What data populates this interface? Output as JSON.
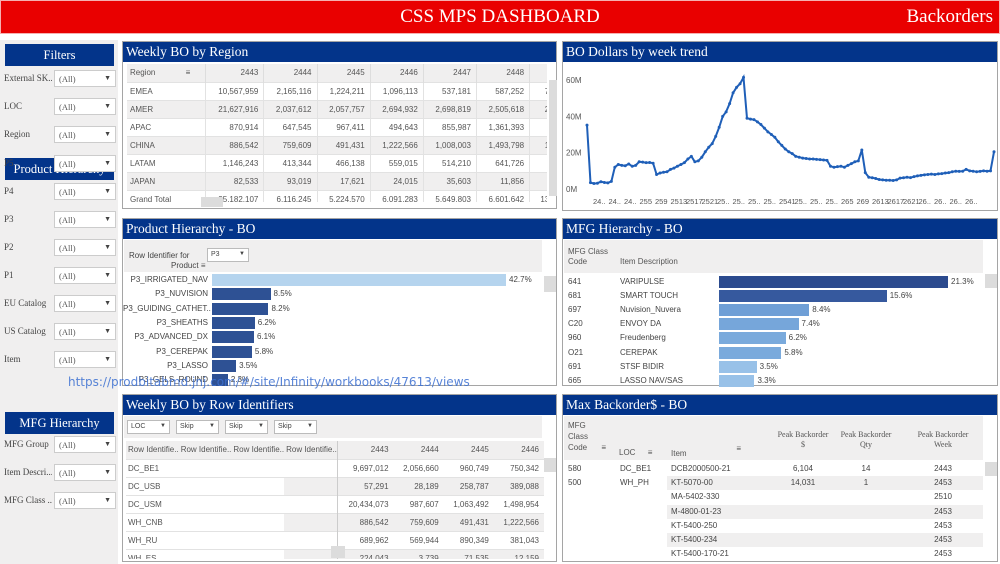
{
  "header": {
    "title": "CSS MPS DASHBOARD",
    "right_label": "Backorders"
  },
  "colors": {
    "header_red": "#e90000",
    "panel_blue": "#03348a",
    "line_blue": "#1f5fb8",
    "bar_dark": "#2e5194",
    "bar_light": "#b5d4ee"
  },
  "sidebar": {
    "sections": [
      {
        "title": "Filters",
        "filters": [
          {
            "label": "External SK...",
            "value": "(All)"
          },
          {
            "label": "LOC",
            "value": "(All)"
          },
          {
            "label": "Region",
            "value": "(All)"
          }
        ]
      },
      {
        "title": "Product Hierarchy",
        "filters": [
          {
            "label": "P5",
            "value": "(All)"
          },
          {
            "label": "P4",
            "value": "(All)"
          },
          {
            "label": "P3",
            "value": "(All)"
          },
          {
            "label": "P2",
            "value": "(All)"
          },
          {
            "label": "P1",
            "value": "(All)"
          },
          {
            "label": "EU Catalog",
            "value": "(All)"
          },
          {
            "label": "US Catalog",
            "value": "(All)"
          },
          {
            "label": "Item",
            "value": "(All)"
          }
        ]
      },
      {
        "title": "MFG Hierarchy",
        "filters": [
          {
            "label": "MFG Group",
            "value": "(All)"
          },
          {
            "label": "Item Descri...",
            "value": "(All)"
          },
          {
            "label": "MFG Class ...",
            "value": "(All)"
          }
        ]
      }
    ]
  },
  "region_table": {
    "title": "Weekly BO by Region",
    "header": [
      "Region",
      "2443",
      "2444",
      "2445",
      "2446",
      "2447",
      "2448",
      "244"
    ],
    "rows": [
      [
        "EMEA",
        "10,567,959",
        "2,165,116",
        "1,224,211",
        "1,096,113",
        "537,181",
        "587,252",
        "7,194,4"
      ],
      [
        "AMER",
        "21,627,916",
        "2,037,612",
        "2,057,757",
        "2,694,932",
        "2,698,819",
        "2,505,618",
        "2,775,8"
      ],
      [
        "APAC",
        "870,914",
        "647,545",
        "967,411",
        "494,643",
        "855,987",
        "1,361,393",
        "1,231,"
      ],
      [
        "CHINA",
        "886,542",
        "759,609",
        "491,431",
        "1,222,566",
        "1,008,003",
        "1,493,798",
        "1,466,6"
      ],
      [
        "LATAM",
        "1,146,243",
        "413,344",
        "466,138",
        "559,015",
        "514,210",
        "641,726",
        "622,7"
      ],
      [
        "JAPAN",
        "82,533",
        "93,019",
        "17,621",
        "24,015",
        "35,603",
        "11,856",
        "25,6"
      ],
      [
        "Grand Total",
        "35,182,107",
        "6,116,245",
        "5,224,570",
        "6,091,283",
        "5,649,803",
        "6,601,642",
        "13,316,6"
      ]
    ]
  },
  "chart_data": [
    {
      "type": "line",
      "title": "BO Dollars by week trend",
      "xlabel": "",
      "ylabel": "",
      "ylim": [
        0,
        65
      ],
      "y_unit": "M",
      "y_ticks": [
        "0M",
        "20M",
        "40M",
        "60M"
      ],
      "y_tick_values": [
        0,
        20,
        40,
        60
      ],
      "x_tick_labels": [
        "24..",
        "24..",
        "24..",
        "255",
        "259",
        "2513",
        "2517",
        "2521",
        "25..",
        "25..",
        "25..",
        "25..",
        "2541",
        "25..",
        "25..",
        "25..",
        "265",
        "269",
        "2613",
        "2617",
        "2621",
        "26..",
        "26..",
        "26..",
        "26.."
      ],
      "grid": false,
      "series": [
        {
          "name": "BO Dollars",
          "values": [
            35.2,
            3.5,
            3.0,
            3.2,
            4.0,
            3.6,
            3.4,
            4.2,
            12.0,
            13.5,
            13.0,
            12.8,
            13.8,
            12.5,
            13.0,
            15.0,
            14.8,
            14.5,
            14.6,
            14.2,
            8.0,
            8.8,
            9.2,
            9.5,
            10.8,
            11.5,
            12.5,
            13.5,
            14.5,
            16.5,
            18.0,
            15.0,
            15.5,
            17.5,
            20.5,
            23.0,
            25.0,
            29.0,
            34.0,
            40.0,
            42.5,
            47.0,
            53.0,
            56.0,
            58.0,
            61.5,
            39.0,
            38.5,
            38.2,
            37.0,
            35.5,
            33.5,
            31.5,
            30.0,
            28.5,
            26.0,
            24.0,
            22.0,
            20.5,
            19.5,
            18.0,
            17.5,
            17.0,
            16.8,
            16.5,
            16.5,
            16.3,
            16.2,
            16.0,
            15.8,
            12.5,
            12.0,
            12.3,
            12.5,
            12.0,
            13.0,
            14.0,
            15.0,
            15.5,
            21.5,
            9.0,
            6.5,
            6.2,
            5.8,
            5.2,
            5.0,
            4.8,
            4.8,
            4.7,
            5.0,
            6.0,
            6.2,
            6.5,
            6.3,
            6.8,
            7.2,
            7.5,
            7.8,
            8.0,
            8.2,
            8.0,
            8.3,
            8.5,
            8.8,
            9.0,
            9.5,
            9.8,
            9.7,
            9.8,
            10.8,
            10.0,
            9.8,
            9.5,
            9.7,
            10.0,
            9.8,
            10.0,
            20.5
          ]
        }
      ]
    },
    {
      "type": "bar",
      "title": "Product Hierarchy - BO",
      "orientation": "horizontal",
      "categories": [
        "P3_IRRIGATED_NAV",
        "P3_NUVISION",
        "P3_GUIDING_CATHET..",
        "P3_SHEATHS",
        "P3_ADVANCED_DX",
        "P3_CEREPAK",
        "P3_LASSO",
        "P3_GELS_ROUND"
      ],
      "values": [
        42.7,
        8.5,
        8.2,
        6.2,
        6.1,
        5.8,
        3.5,
        2.3
      ],
      "value_labels": [
        "42.7%",
        "8.5%",
        "8.2%",
        "6.2%",
        "6.1%",
        "5.8%",
        "3.5%",
        "2.3%"
      ],
      "unit": "%",
      "highlighted_index": 0
    },
    {
      "type": "bar",
      "title": "MFG Hierarchy - BO",
      "orientation": "horizontal",
      "categories": [
        "VARIPULSE",
        "SMART TOUCH",
        "Nuvision_Nuvera",
        "ENVOY DA",
        "Freudenberg",
        "CEREPAK",
        "STSF BIDIR",
        "LASSO NAV/SAS"
      ],
      "codes": [
        "641",
        "681",
        "697",
        "C20",
        "960",
        "O21",
        "691",
        "665"
      ],
      "values": [
        21.3,
        15.6,
        8.4,
        7.4,
        6.2,
        5.8,
        3.5,
        3.3
      ],
      "value_labels": [
        "21.3%",
        "15.6%",
        "8.4%",
        "7.4%",
        "6.2%",
        "5.8%",
        "3.5%",
        "3.3%"
      ],
      "unit": "%"
    }
  ],
  "product_panel": {
    "row_identifier_label_line1": "Row Identifier for",
    "row_identifier_label_line2": "Product",
    "row_identifier_value": "P3"
  },
  "mfg_panel": {
    "col_code_line1": "MFG Class",
    "col_code_line2": "Code",
    "col_desc": "Item Description"
  },
  "row_id_table": {
    "title": "Weekly BO by Row Identifiers",
    "selectors": [
      "LOC",
      "Skip",
      "Skip",
      "Skip"
    ],
    "header": [
      "Row Identifie..",
      "Row Identifie..",
      "Row Identifie..",
      "Row Identifie..",
      "2443",
      "2444",
      "2445",
      "2446"
    ],
    "rows": [
      [
        "DC_BE1",
        "9,697,012",
        "2,056,660",
        "960,749",
        "750,342"
      ],
      [
        "DC_USB",
        "57,291",
        "28,189",
        "258,787",
        "389,088"
      ],
      [
        "DC_USM",
        "20,434,073",
        "987,607",
        "1,063,492",
        "1,498,954"
      ],
      [
        "WH_CNB",
        "886,542",
        "759,609",
        "491,431",
        "1,222,566"
      ],
      [
        "WH_RU",
        "689,962",
        "569,944",
        "890,349",
        "381,043"
      ],
      [
        "WH_ES",
        "224,043",
        "3,739",
        "71,535",
        "12,159"
      ],
      [
        "WH_UK",
        "68,773",
        "21,849",
        "93,452",
        "60,168"
      ]
    ]
  },
  "max_bo_table": {
    "title": "Max Backorder$ - BO",
    "header": {
      "code_l1": "MFG",
      "code_l2": "Class",
      "code_l3": "Code",
      "loc": "LOC",
      "item": "Item",
      "peak_dollar_l1": "Peak Backorder",
      "peak_dollar_l2": "$",
      "peak_qty_l1": "Peak Backorder",
      "peak_qty_l2": "Qty",
      "peak_week_l1": "Peak Backorder",
      "peak_week_l2": "Week"
    },
    "rows": [
      {
        "code": "580",
        "loc": "DC_BE1",
        "item": "DCB2000500-21",
        "dollar": "6,104",
        "qty": "14",
        "week": "2443"
      },
      {
        "code": "500",
        "loc": "WH_PH",
        "item": "KT-5070-00",
        "dollar": "14,031",
        "qty": "1",
        "week": "2453"
      },
      {
        "code": "",
        "loc": "",
        "item": "MA-5402-330",
        "dollar": "",
        "qty": "",
        "week": "2510"
      },
      {
        "code": "",
        "loc": "",
        "item": "M-4800-01-23",
        "dollar": "",
        "qty": "",
        "week": "2453"
      },
      {
        "code": "",
        "loc": "",
        "item": "KT-5400-250",
        "dollar": "",
        "qty": "",
        "week": "2453"
      },
      {
        "code": "",
        "loc": "",
        "item": "KT-5400-234",
        "dollar": "",
        "qty": "",
        "week": "2453"
      },
      {
        "code": "",
        "loc": "",
        "item": "KT-5400-170-21",
        "dollar": "",
        "qty": "",
        "week": "2453"
      }
    ]
  },
  "overlay": {
    "url_text": "https://prodbitabmd.jnj.com/#/site/Infinity/workbooks/47613/views"
  }
}
